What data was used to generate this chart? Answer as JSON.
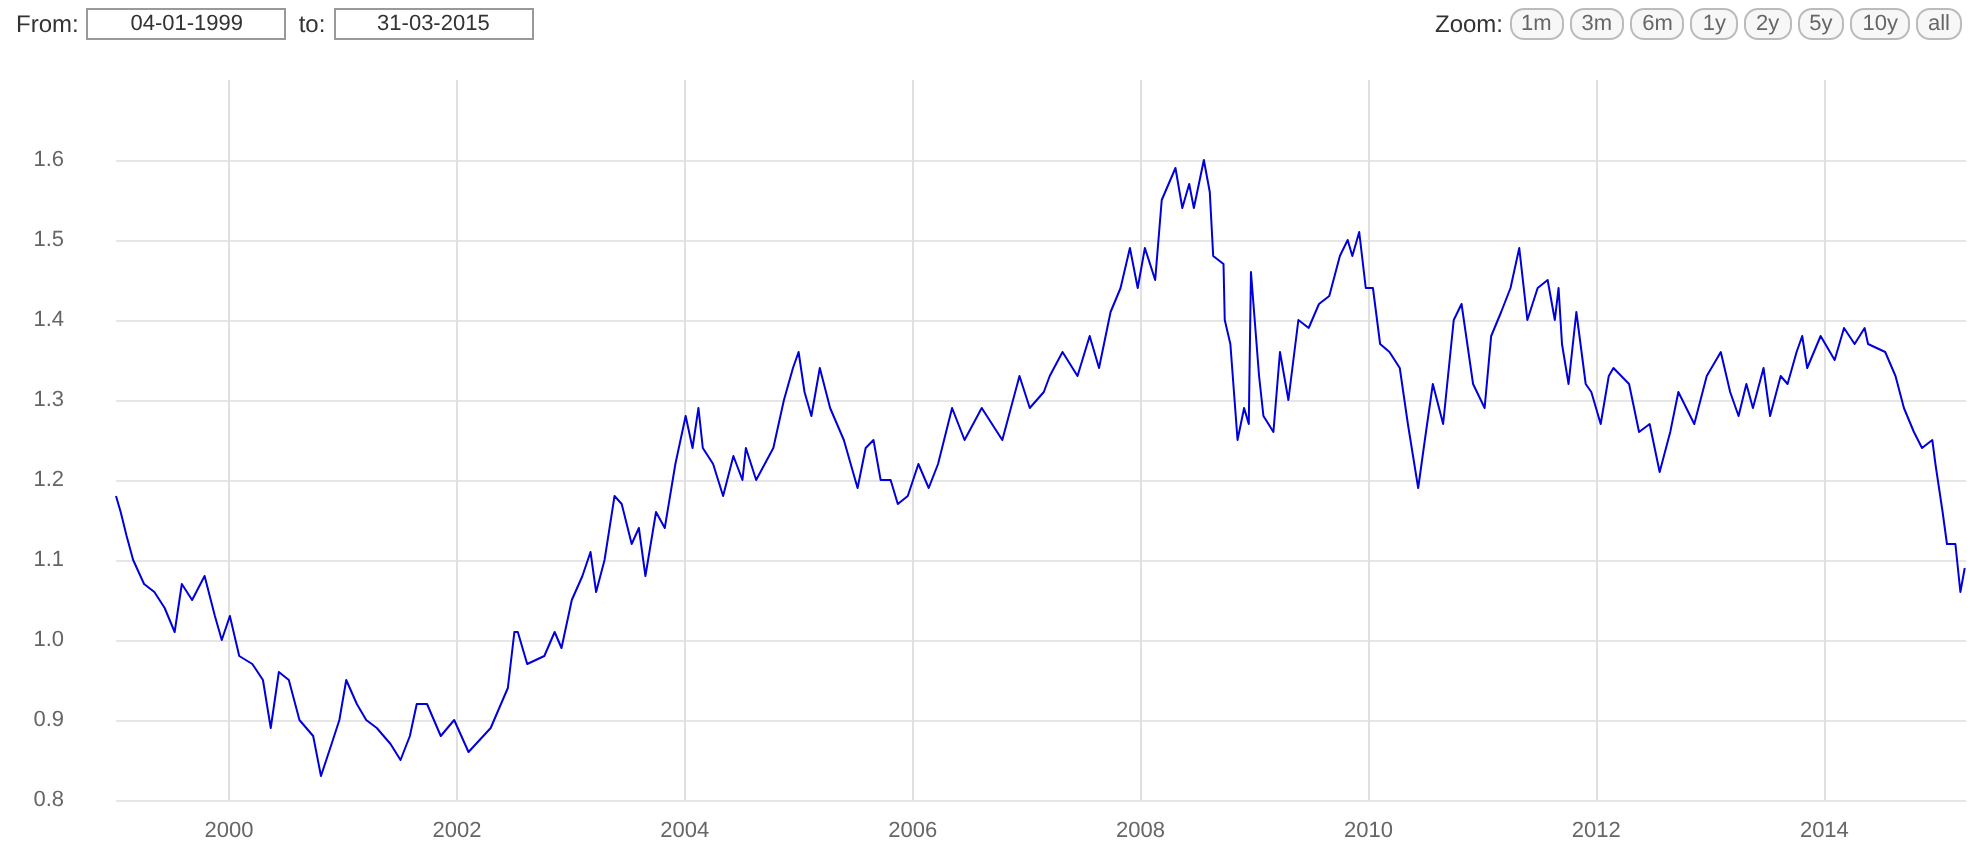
{
  "chart_data": {
    "type": "line",
    "annotations": [
      "From:",
      "04-01-1999",
      "to:",
      "31-03-2015",
      "Zoom:",
      "1m",
      "3m",
      "6m",
      "1y",
      "2y",
      "5y",
      "10y",
      "all"
    ],
    "x": [
      "1999-01-04",
      "1999-01-19",
      "1999-02-07",
      "1999-02-28",
      "1999-04-04",
      "1999-05-07",
      "1999-06-09",
      "1999-07-11",
      "1999-08-03",
      "1999-09-05",
      "1999-10-15",
      "1999-11-17",
      "1999-12-09",
      "2000-01-04",
      "2000-02-03",
      "2000-03-16",
      "2000-04-19",
      "2000-05-14",
      "2000-06-09",
      "2000-07-11",
      "2000-08-14",
      "2000-09-27",
      "2000-10-22",
      "2000-11-25",
      "2000-12-20",
      "2001-01-11",
      "2001-02-14",
      "2001-03-16",
      "2001-04-19",
      "2001-06-02",
      "2001-07-04",
      "2001-08-03",
      "2001-08-25",
      "2001-09-27",
      "2001-11-10",
      "2001-12-23",
      "2002-02-07",
      "2002-04-19",
      "2002-06-13",
      "2002-07-04",
      "2002-07-15",
      "2002-08-14",
      "2002-10-08",
      "2002-11-10",
      "2002-12-02",
      "2003-01-04",
      "2003-02-07",
      "2003-03-05",
      "2003-03-23",
      "2003-04-19",
      "2003-05-21",
      "2003-06-13",
      "2003-07-15",
      "2003-08-07",
      "2003-08-28",
      "2003-10-01",
      "2003-10-29",
      "2003-12-02",
      "2004-01-04",
      "2004-01-26",
      "2004-02-14",
      "2004-02-28",
      "2004-04-01",
      "2004-05-03",
      "2004-06-05",
      "2004-07-04",
      "2004-07-15",
      "2004-08-17",
      "2004-10-11",
      "2004-11-14",
      "2004-12-13",
      "2004-12-31",
      "2005-01-19",
      "2005-02-10",
      "2005-03-09",
      "2005-04-11",
      "2005-05-25",
      "2005-06-16",
      "2005-07-08",
      "2005-08-03",
      "2005-08-28",
      "2005-09-20",
      "2005-10-22",
      "2005-11-14",
      "2005-12-16",
      "2006-01-19",
      "2006-02-21",
      "2006-03-23",
      "2006-05-07",
      "2006-06-16",
      "2006-08-10",
      "2006-10-15",
      "2006-12-09",
      "2007-01-11",
      "2007-02-25",
      "2007-03-16",
      "2007-04-26",
      "2007-06-13",
      "2007-07-22",
      "2007-08-21",
      "2007-09-27",
      "2007-10-29",
      "2007-11-28",
      "2007-12-23",
      "2008-01-15",
      "2008-02-17",
      "2008-03-09",
      "2008-04-22",
      "2008-05-14",
      "2008-06-05",
      "2008-06-20",
      "2008-07-22",
      "2008-08-10",
      "2008-08-21",
      "2008-09-23",
      "2008-09-27",
      "2008-10-15",
      "2008-11-07",
      "2008-11-28",
      "2008-12-13",
      "2008-12-20",
      "2009-01-15",
      "2009-01-29",
      "2009-03-02",
      "2009-03-23",
      "2009-04-19",
      "2009-05-21",
      "2009-06-23",
      "2009-07-26",
      "2009-08-28",
      "2009-10-01",
      "2009-10-26",
      "2009-11-10",
      "2009-12-02",
      "2009-12-23",
      "2010-01-15",
      "2010-02-07",
      "2010-03-09",
      "2010-04-11",
      "2010-05-07",
      "2010-06-09",
      "2010-07-04",
      "2010-07-26",
      "2010-08-28",
      "2010-10-01",
      "2010-10-26",
      "2010-12-02",
      "2011-01-08",
      "2011-01-29",
      "2011-03-02",
      "2011-04-01",
      "2011-04-29",
      "2011-05-25",
      "2011-06-27",
      "2011-07-29",
      "2011-08-21",
      "2011-09-02",
      "2011-09-13",
      "2011-10-04",
      "2011-10-29",
      "2011-11-28",
      "2011-12-16",
      "2012-01-15",
      "2012-02-10",
      "2012-02-25",
      "2012-04-15",
      "2012-05-17",
      "2012-06-20",
      "2012-07-22",
      "2012-08-25",
      "2012-09-20",
      "2012-11-10",
      "2012-12-20",
      "2013-02-03",
      "2013-03-05",
      "2013-04-01",
      "2013-04-26",
      "2013-05-17",
      "2013-06-20",
      "2013-07-11",
      "2013-08-14",
      "2013-09-05",
      "2013-10-04",
      "2013-10-22",
      "2013-11-07",
      "2013-12-20",
      "2014-02-03",
      "2014-03-05",
      "2014-04-08",
      "2014-05-10",
      "2014-05-21",
      "2014-07-15",
      "2014-08-17",
      "2014-09-13",
      "2014-10-15",
      "2014-11-10",
      "2014-12-13",
      "2014-12-23",
      "2015-01-15",
      "2015-01-29",
      "2015-02-25",
      "2015-03-13",
      "2015-03-27"
    ],
    "values": [
      1.18,
      1.16,
      1.13,
      1.1,
      1.07,
      1.06,
      1.04,
      1.01,
      1.07,
      1.05,
      1.08,
      1.03,
      1.0,
      1.03,
      0.98,
      0.97,
      0.95,
      0.89,
      0.96,
      0.95,
      0.9,
      0.88,
      0.83,
      0.87,
      0.9,
      0.95,
      0.92,
      0.9,
      0.89,
      0.87,
      0.85,
      0.88,
      0.92,
      0.92,
      0.88,
      0.9,
      0.86,
      0.89,
      0.94,
      1.01,
      1.01,
      0.97,
      0.98,
      1.01,
      0.99,
      1.05,
      1.08,
      1.11,
      1.06,
      1.1,
      1.18,
      1.17,
      1.12,
      1.14,
      1.08,
      1.16,
      1.14,
      1.22,
      1.28,
      1.24,
      1.29,
      1.24,
      1.22,
      1.18,
      1.23,
      1.2,
      1.24,
      1.2,
      1.24,
      1.3,
      1.34,
      1.36,
      1.31,
      1.28,
      1.34,
      1.29,
      1.25,
      1.22,
      1.19,
      1.24,
      1.25,
      1.2,
      1.2,
      1.17,
      1.18,
      1.22,
      1.19,
      1.22,
      1.29,
      1.25,
      1.29,
      1.25,
      1.33,
      1.29,
      1.31,
      1.33,
      1.36,
      1.33,
      1.38,
      1.34,
      1.41,
      1.44,
      1.49,
      1.44,
      1.49,
      1.45,
      1.55,
      1.59,
      1.54,
      1.57,
      1.54,
      1.6,
      1.56,
      1.48,
      1.47,
      1.4,
      1.37,
      1.25,
      1.29,
      1.27,
      1.46,
      1.33,
      1.28,
      1.26,
      1.36,
      1.3,
      1.4,
      1.39,
      1.42,
      1.43,
      1.48,
      1.5,
      1.48,
      1.51,
      1.44,
      1.44,
      1.37,
      1.36,
      1.34,
      1.27,
      1.19,
      1.26,
      1.32,
      1.27,
      1.4,
      1.42,
      1.32,
      1.29,
      1.38,
      1.41,
      1.44,
      1.49,
      1.4,
      1.44,
      1.45,
      1.4,
      1.44,
      1.37,
      1.32,
      1.41,
      1.32,
      1.31,
      1.27,
      1.33,
      1.34,
      1.32,
      1.26,
      1.27,
      1.21,
      1.26,
      1.31,
      1.27,
      1.33,
      1.36,
      1.31,
      1.28,
      1.32,
      1.29,
      1.34,
      1.28,
      1.33,
      1.32,
      1.36,
      1.38,
      1.34,
      1.38,
      1.35,
      1.39,
      1.37,
      1.39,
      1.37,
      1.36,
      1.33,
      1.29,
      1.26,
      1.24,
      1.25,
      1.22,
      1.16,
      1.12,
      1.12,
      1.06,
      1.09
    ],
    "color": "#0000dd",
    "xlim": [
      "1999-01-04",
      "2015-03-31"
    ],
    "xticks": [
      {
        "value": "2000",
        "label": "2000"
      },
      {
        "value": "2002",
        "label": "2002"
      },
      {
        "value": "2004",
        "label": "2004"
      },
      {
        "value": "2006",
        "label": "2006"
      },
      {
        "value": "2008",
        "label": "2008"
      },
      {
        "value": "2010",
        "label": "2010"
      },
      {
        "value": "2012",
        "label": "2012"
      },
      {
        "value": "2014",
        "label": "2014"
      }
    ],
    "ylim": [
      0.8,
      1.7
    ],
    "yticks": [
      {
        "value": 0.8,
        "label": "0.8"
      },
      {
        "value": 0.9,
        "label": "0.9"
      },
      {
        "value": 1,
        "label": "1.0"
      },
      {
        "value": 1.1,
        "label": "1.1"
      },
      {
        "value": 1.2,
        "label": "1.2"
      },
      {
        "value": 1.3,
        "label": "1.3"
      },
      {
        "value": 1.4,
        "label": "1.4"
      },
      {
        "value": 1.5,
        "label": "1.5"
      },
      {
        "value": 1.6,
        "label": "1.6"
      }
    ],
    "grid": true,
    "marker": "none",
    "line_style": "solid"
  }
}
